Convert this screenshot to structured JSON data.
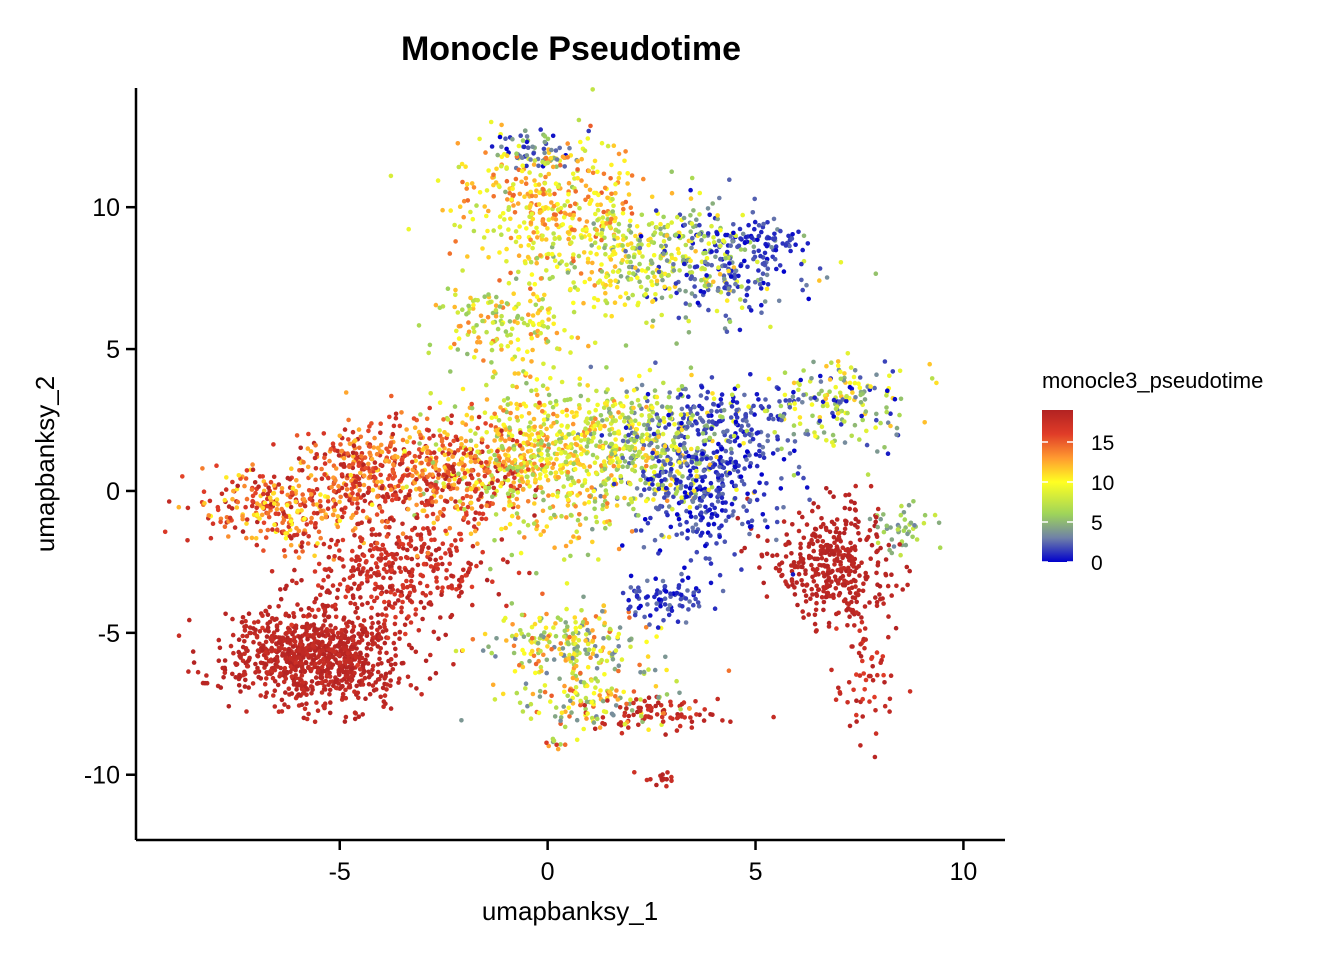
{
  "chart_data": {
    "type": "scatter",
    "title": "Monocle Pseudotime",
    "xlabel": "umapbanksy_1",
    "ylabel": "umapbanksy_2",
    "xlim": [
      -9.9,
      11.0
    ],
    "ylim": [
      -12.3,
      14.2
    ],
    "x_ticks": [
      -5,
      0,
      5,
      10
    ],
    "y_ticks": [
      -10,
      -5,
      0,
      5,
      10
    ],
    "x_tick_labels": [
      "-5",
      "0",
      "5",
      "10"
    ],
    "y_tick_labels": [
      "-10",
      "-5",
      "0",
      "5",
      "10"
    ],
    "grid": false,
    "legend": {
      "title": "monocle3_pseudotime",
      "placement": "right",
      "breaks": [
        0,
        5,
        10,
        15
      ],
      "break_labels": [
        "0",
        "5",
        "10",
        "15"
      ],
      "range": [
        0,
        19
      ]
    },
    "color_scale": {
      "stops": [
        {
          "value": 0,
          "color": "#0000cc"
        },
        {
          "value": 3,
          "color": "#6f80a8"
        },
        {
          "value": 6,
          "color": "#9ed45a"
        },
        {
          "value": 10,
          "color": "#ffff22"
        },
        {
          "value": 13,
          "color": "#ff9a30"
        },
        {
          "value": 16,
          "color": "#e03c28"
        },
        {
          "value": 19,
          "color": "#b22222"
        }
      ]
    },
    "series": [
      {
        "points_note": "",
        "clusters": [
          {
            "cx": -5.6,
            "cy": -5.8,
            "sx": 1.05,
            "sy": 0.85,
            "n": 900,
            "pmin": 17.5,
            "pmax": 19
          },
          {
            "cx": -3.6,
            "cy": -2.8,
            "sx": 1.1,
            "sy": 1.1,
            "n": 380,
            "pmin": 16,
            "pmax": 19
          },
          {
            "cx": -2.4,
            "cy": 0.6,
            "sx": 1.2,
            "sy": 1.0,
            "n": 420,
            "pmin": 11,
            "pmax": 19
          },
          {
            "cx": -6.4,
            "cy": -0.6,
            "sx": 1.1,
            "sy": 0.7,
            "n": 320,
            "pmin": 10,
            "pmax": 19
          },
          {
            "cx": -4.3,
            "cy": 0.9,
            "sx": 0.8,
            "sy": 0.8,
            "n": 220,
            "pmin": 12,
            "pmax": 19
          },
          {
            "cx": 0.2,
            "cy": 1.2,
            "sx": 1.3,
            "sy": 1.3,
            "n": 700,
            "pmin": 5,
            "pmax": 14
          },
          {
            "cx": 2.6,
            "cy": 1.6,
            "sx": 0.9,
            "sy": 1.1,
            "n": 300,
            "pmin": 2,
            "pmax": 12
          },
          {
            "cx": 3.8,
            "cy": 0.3,
            "sx": 0.9,
            "sy": 1.3,
            "n": 380,
            "pmin": 0,
            "pmax": 3
          },
          {
            "cx": 6.8,
            "cy": -2.5,
            "sx": 0.8,
            "sy": 1.1,
            "n": 380,
            "pmin": 18,
            "pmax": 19
          },
          {
            "cx": 7.7,
            "cy": -6.4,
            "sx": 0.4,
            "sy": 1.2,
            "n": 60,
            "pmin": 16,
            "pmax": 19
          },
          {
            "cx": 8.6,
            "cy": -1.2,
            "sx": 0.35,
            "sy": 0.4,
            "n": 45,
            "pmin": 3,
            "pmax": 8
          },
          {
            "cx": 7.0,
            "cy": 3.0,
            "sx": 0.8,
            "sy": 0.8,
            "n": 180,
            "pmin": 0,
            "pmax": 12
          },
          {
            "cx": 0.0,
            "cy": 10.0,
            "sx": 1.1,
            "sy": 1.2,
            "n": 380,
            "pmin": 7,
            "pmax": 15
          },
          {
            "cx": 2.6,
            "cy": 8.2,
            "sx": 1.4,
            "sy": 1.0,
            "n": 360,
            "pmin": 4,
            "pmax": 12
          },
          {
            "cx": 4.2,
            "cy": 8.0,
            "sx": 0.9,
            "sy": 0.9,
            "n": 200,
            "pmin": 0,
            "pmax": 4
          },
          {
            "cx": -1.0,
            "cy": 5.8,
            "sx": 0.8,
            "sy": 0.8,
            "n": 160,
            "pmin": 5,
            "pmax": 14
          },
          {
            "cx": 0.5,
            "cy": -5.3,
            "sx": 1.0,
            "sy": 0.6,
            "n": 220,
            "pmin": 3,
            "pmax": 15
          },
          {
            "cx": 1.2,
            "cy": -7.3,
            "sx": 1.0,
            "sy": 0.5,
            "n": 140,
            "pmin": 3,
            "pmax": 15
          },
          {
            "cx": 2.7,
            "cy": -7.9,
            "sx": 0.8,
            "sy": 0.3,
            "n": 80,
            "pmin": 17,
            "pmax": 19
          },
          {
            "cx": 2.8,
            "cy": -3.8,
            "sx": 0.6,
            "sy": 0.4,
            "n": 80,
            "pmin": 0,
            "pmax": 3
          },
          {
            "cx": -0.3,
            "cy": 12.0,
            "sx": 0.5,
            "sy": 0.4,
            "n": 60,
            "pmin": 0,
            "pmax": 6
          },
          {
            "cx": 5.2,
            "cy": 8.8,
            "sx": 0.4,
            "sy": 0.35,
            "n": 50,
            "pmin": 0,
            "pmax": 2
          },
          {
            "cx": 4.4,
            "cy": 2.7,
            "sx": 0.8,
            "sy": 0.6,
            "n": 120,
            "pmin": 0,
            "pmax": 3
          },
          {
            "cx": 2.6,
            "cy": -10.2,
            "sx": 0.35,
            "sy": 0.1,
            "n": 14,
            "pmin": 17,
            "pmax": 19
          },
          {
            "cx": 0.3,
            "cy": -8.9,
            "sx": 0.2,
            "sy": 0.1,
            "n": 10,
            "pmin": 3,
            "pmax": 18
          }
        ]
      }
    ]
  }
}
